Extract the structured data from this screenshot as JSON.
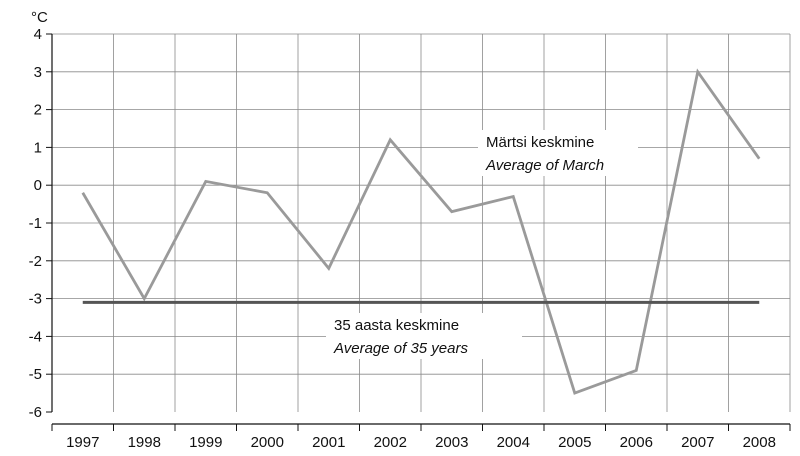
{
  "chart_data": {
    "type": "line",
    "ylabel": "°C",
    "ylim": [
      -6,
      4
    ],
    "yticks": [
      "4",
      "3",
      "2",
      "1",
      "0",
      "-1",
      "-2",
      "-3",
      "-4",
      "-5",
      "-6"
    ],
    "yticks_values": [
      4,
      3,
      2,
      1,
      0,
      -1,
      -2,
      -3,
      -4,
      -5,
      -6
    ],
    "categories": [
      "1997",
      "1998",
      "1999",
      "2000",
      "2001",
      "2002",
      "2003",
      "2004",
      "2005",
      "2006",
      "2007",
      "2008"
    ],
    "grid": true,
    "series": [
      {
        "name": "Märtsi keskmine / Average of March",
        "color": "#9a9a9a",
        "values": [
          -0.2,
          -3.0,
          0.1,
          -0.2,
          -2.2,
          1.2,
          -0.7,
          -0.3,
          -5.5,
          -4.9,
          3.0,
          0.7
        ]
      },
      {
        "name": "35 aasta keskmine / Average of 35 years",
        "color": "#555555",
        "values": [
          -3.1,
          -3.1,
          -3.1,
          -3.1,
          -3.1,
          -3.1,
          -3.1,
          -3.1,
          -3.1,
          -3.1,
          -3.1,
          -3.1
        ]
      }
    ],
    "annotations": {
      "march_line1": "Märtsi keskmine",
      "march_line2": "Average of March",
      "avg35_line1": "35 aasta keskmine",
      "avg35_line2": "Average of 35 years"
    }
  }
}
